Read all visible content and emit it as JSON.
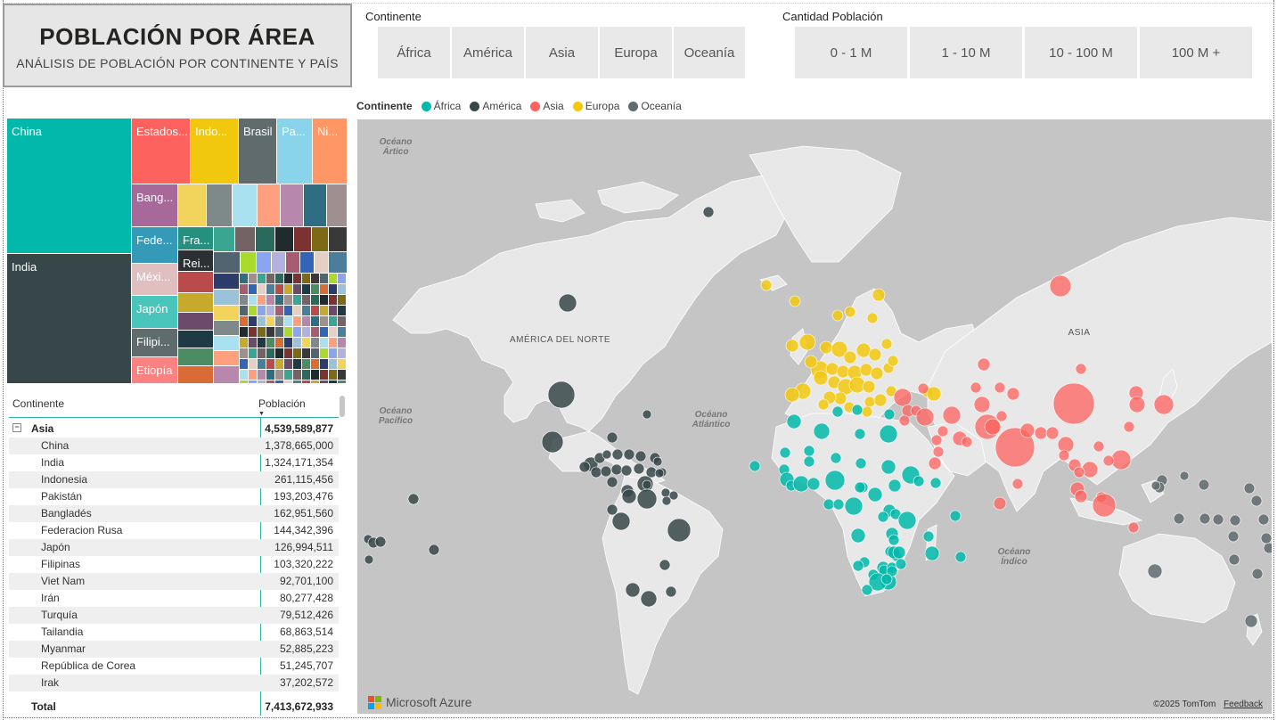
{
  "header": {
    "title": "POBLACIÓN POR ÁREA",
    "subtitle": "ANÁLISIS DE POBLACIÓN POR CONTINENTE Y PAÍS"
  },
  "continent_slicer": {
    "label": "Continente",
    "options": [
      "África",
      "América",
      "Asia",
      "Europa",
      "Oceanía"
    ]
  },
  "population_slicer": {
    "label": "Cantidad Población",
    "options": [
      "0 - 1 M",
      "1 - 10 M",
      "10 - 100 M",
      "100 M +"
    ]
  },
  "legend": {
    "title": "Continente",
    "items": [
      {
        "label": "África",
        "color": "#01b8aa"
      },
      {
        "label": "América",
        "color": "#374649"
      },
      {
        "label": "Asia",
        "color": "#fd625e"
      },
      {
        "label": "Europa",
        "color": "#f2c80f"
      },
      {
        "label": "Oceanía",
        "color": "#5f6b6d"
      }
    ]
  },
  "treemap": {
    "labels": {
      "china": "China",
      "india": "India",
      "usa": "Estados...",
      "indonesia": "Indo...",
      "brasil": "Brasil",
      "pakistan": "Pa...",
      "nigeria": "Ni...",
      "bangladesh": "Bang...",
      "rusia": "Fede...",
      "francia": "Fra...",
      "reino_unido": "Rei...",
      "mexico": "Méxi...",
      "japon": "Japón",
      "filipinas": "Filipi...",
      "etiopia": "Etiopía"
    }
  },
  "table": {
    "col_continent": "Continente",
    "col_population": "Población",
    "group": {
      "name": "Asia",
      "value": "4,539,589,877"
    },
    "rows": [
      {
        "name": "China",
        "value": "1,378,665,000"
      },
      {
        "name": "India",
        "value": "1,324,171,354"
      },
      {
        "name": "Indonesia",
        "value": "261,115,456"
      },
      {
        "name": "Pakistán",
        "value": "193,203,476"
      },
      {
        "name": "Bangladés",
        "value": "162,951,560"
      },
      {
        "name": "Federacion Rusa",
        "value": "144,342,396"
      },
      {
        "name": "Japón",
        "value": "126,994,511"
      },
      {
        "name": "Filipinas",
        "value": "103,320,222"
      },
      {
        "name": "Viet Nam",
        "value": "92,701,100"
      },
      {
        "name": "Irán",
        "value": "80,277,428"
      },
      {
        "name": "Turquía",
        "value": "79,512,426"
      },
      {
        "name": "Tailandia",
        "value": "68,863,514"
      },
      {
        "name": "Myanmar",
        "value": "52,885,223"
      },
      {
        "name": "República de Corea",
        "value": "51,245,707"
      },
      {
        "name": "Irak",
        "value": "37,202,572"
      }
    ],
    "total_label": "Total",
    "total_value": "7,413,672,933"
  },
  "map": {
    "labels": {
      "artico": "Océano\nÁrtico",
      "norteamerica": "AMÉRICA DEL NORTE",
      "asia": "ASIA",
      "pacifico": "Océano\nPacífico",
      "atlantico": "Océano\nAtlántico",
      "indico": "Océano\nÍndico"
    },
    "brand": "Microsoft Azure",
    "copyright": "©2025 TomTom",
    "feedback": "Feedback"
  }
}
